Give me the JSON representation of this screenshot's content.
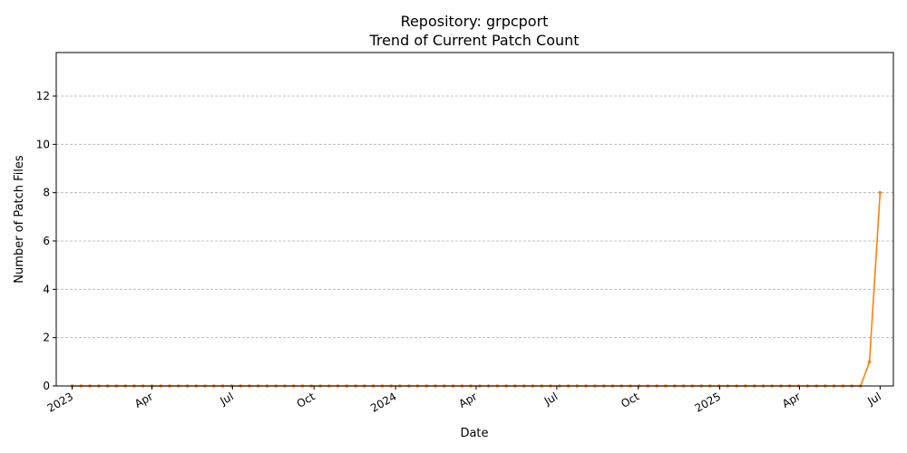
{
  "chart_data": {
    "type": "line",
    "title": "Repository: grpcport",
    "subtitle": "Trend of Current Patch Count",
    "xlabel": "Date",
    "ylabel": "Number of Patch Files",
    "ylim": [
      0,
      13.8
    ],
    "xlim": [
      "2022-12-14",
      "2025-07-16"
    ],
    "y_ticks": [
      0,
      2,
      4,
      6,
      8,
      10,
      12
    ],
    "x_ticks": [
      {
        "date": "2023-01-01",
        "label": "2023"
      },
      {
        "date": "2023-04-01",
        "label": "Apr"
      },
      {
        "date": "2023-07-01",
        "label": "Jul"
      },
      {
        "date": "2023-10-01",
        "label": "Oct"
      },
      {
        "date": "2024-01-01",
        "label": "2024"
      },
      {
        "date": "2024-04-01",
        "label": "Apr"
      },
      {
        "date": "2024-07-01",
        "label": "Jul"
      },
      {
        "date": "2024-10-01",
        "label": "Oct"
      },
      {
        "date": "2025-01-01",
        "label": "2025"
      },
      {
        "date": "2025-04-01",
        "label": "Apr"
      },
      {
        "date": "2025-07-01",
        "label": "Jul"
      }
    ],
    "grid": "y-dashed",
    "series": [
      {
        "color": "#ff7f0e",
        "x": [
          "2023-01-01",
          "2023-01-11",
          "2023-01-21",
          "2023-01-31",
          "2023-02-10",
          "2023-02-20",
          "2023-03-02",
          "2023-03-12",
          "2023-03-22",
          "2023-04-01",
          "2023-04-11",
          "2023-04-21",
          "2023-05-01",
          "2023-05-11",
          "2023-05-21",
          "2023-05-31",
          "2023-06-10",
          "2023-06-20",
          "2023-06-30",
          "2023-07-10",
          "2023-07-20",
          "2023-07-30",
          "2023-08-09",
          "2023-08-19",
          "2023-08-29",
          "2023-09-08",
          "2023-09-18",
          "2023-09-28",
          "2023-10-08",
          "2023-10-18",
          "2023-10-28",
          "2023-11-07",
          "2023-11-17",
          "2023-11-27",
          "2023-12-07",
          "2023-12-17",
          "2023-12-27",
          "2024-01-06",
          "2024-01-16",
          "2024-01-26",
          "2024-02-05",
          "2024-02-15",
          "2024-02-25",
          "2024-03-06",
          "2024-03-16",
          "2024-03-26",
          "2024-04-05",
          "2024-04-15",
          "2024-04-25",
          "2024-05-05",
          "2024-05-15",
          "2024-05-25",
          "2024-06-04",
          "2024-06-14",
          "2024-06-24",
          "2024-07-04",
          "2024-07-14",
          "2024-07-24",
          "2024-08-03",
          "2024-08-13",
          "2024-08-23",
          "2024-09-02",
          "2024-09-12",
          "2024-09-22",
          "2024-10-02",
          "2024-10-12",
          "2024-10-22",
          "2024-11-01",
          "2024-11-11",
          "2024-11-21",
          "2024-12-01",
          "2024-12-11",
          "2024-12-21",
          "2024-12-31",
          "2025-01-10",
          "2025-01-20",
          "2025-01-30",
          "2025-02-09",
          "2025-02-19",
          "2025-03-01",
          "2025-03-11",
          "2025-03-21",
          "2025-03-31",
          "2025-04-10",
          "2025-04-20",
          "2025-04-30",
          "2025-05-10",
          "2025-05-20",
          "2025-05-30",
          "2025-06-09",
          "2025-06-19",
          "2025-06-29",
          "2025-07-01"
        ],
        "values": [
          0,
          0,
          0,
          0,
          0,
          0,
          0,
          0,
          0,
          0,
          0,
          0,
          0,
          0,
          0,
          0,
          0,
          0,
          0,
          0,
          0,
          0,
          0,
          0,
          0,
          0,
          0,
          0,
          0,
          0,
          0,
          0,
          0,
          0,
          0,
          0,
          0,
          0,
          0,
          0,
          0,
          0,
          0,
          0,
          0,
          0,
          0,
          0,
          0,
          0,
          0,
          0,
          0,
          0,
          0,
          0,
          0,
          0,
          0,
          0,
          0,
          0,
          0,
          0,
          0,
          0,
          0,
          0,
          0,
          0,
          0,
          0,
          0,
          0,
          0,
          0,
          0,
          0,
          0,
          0,
          0,
          0,
          0,
          0,
          0,
          0,
          0,
          0,
          0,
          0,
          1,
          null,
          8
        ]
      }
    ]
  }
}
